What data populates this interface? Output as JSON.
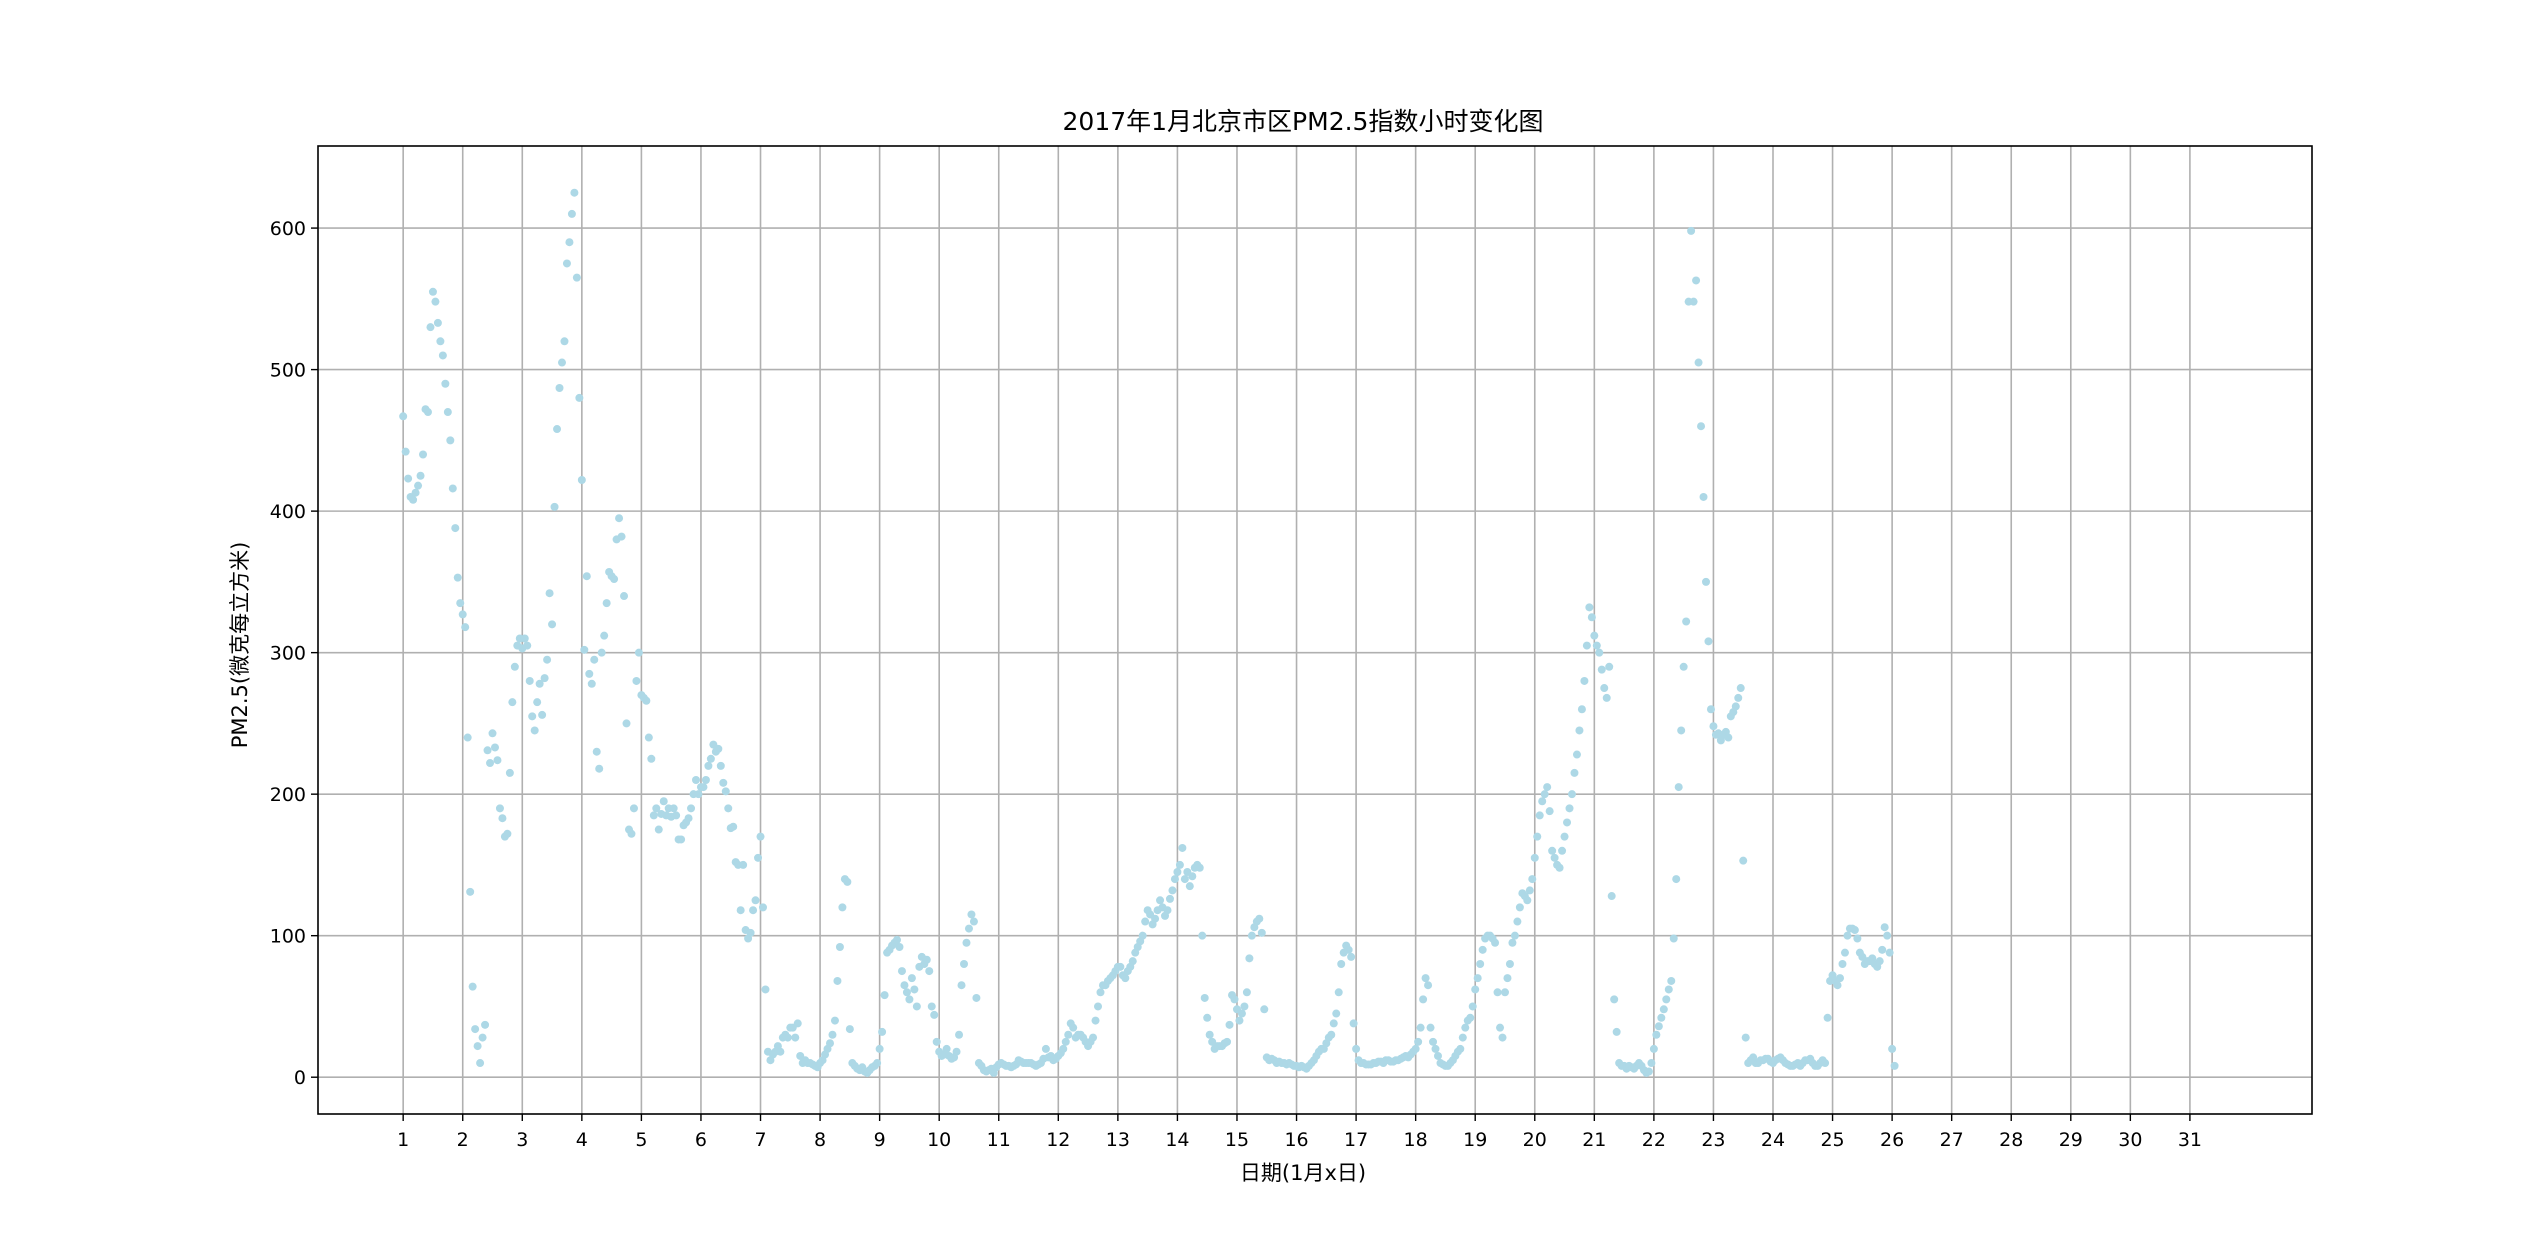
{
  "colors": {
    "point": "#add8e6",
    "grid": "#b0b0b0",
    "axis": "#000000",
    "background": "#ffffff"
  },
  "chart_data": {
    "type": "scatter",
    "title": "2017年1月北京市区PM2.5指数小时变化图",
    "xlabel": "日期(1月x日)",
    "ylabel": "PM2.5(微克每立方米)",
    "x_unit": "day of January (1 = Jan 1 00:00)",
    "xlim": [
      -0.43,
      33.05
    ],
    "ylim": [
      -26,
      658
    ],
    "xticks": [
      1,
      2,
      3,
      4,
      5,
      6,
      7,
      8,
      9,
      10,
      11,
      12,
      13,
      14,
      15,
      16,
      17,
      18,
      19,
      20,
      21,
      22,
      23,
      24,
      25,
      26,
      27,
      28,
      29,
      30,
      31
    ],
    "yticks": [
      0,
      100,
      200,
      300,
      400,
      500,
      600
    ],
    "grid": true,
    "series": [
      {
        "x_start": 1,
        "x_step_hours": 1,
        "values": [
          467,
          442,
          423,
          410,
          408,
          413,
          418,
          425,
          440,
          472,
          470,
          530,
          555,
          548,
          533,
          520,
          510,
          490,
          470,
          450,
          416,
          388,
          353,
          335,
          327,
          318,
          240,
          131,
          64,
          34,
          22,
          10,
          28,
          37,
          231,
          222,
          243,
          233,
          224,
          190,
          183,
          170,
          172,
          215,
          265,
          290,
          305,
          310,
          303,
          310,
          305,
          280,
          255,
          245,
          265,
          278,
          256,
          282,
          295,
          342,
          320,
          403,
          458,
          487,
          505,
          520,
          575,
          590,
          610,
          625,
          565,
          480,
          422,
          302,
          354,
          285,
          278,
          295,
          230,
          218,
          300,
          312,
          335,
          357,
          354,
          352,
          380,
          395,
          382,
          340,
          250,
          175,
          172,
          190,
          280,
          300,
          270,
          268,
          266,
          240,
          225,
          185,
          190,
          175,
          186,
          195,
          185,
          190,
          184,
          190,
          185,
          168,
          168,
          178,
          180,
          183,
          190,
          200,
          210,
          200,
          205,
          205,
          210,
          220,
          225,
          235,
          230,
          232,
          220,
          208,
          202,
          190,
          176,
          177,
          152,
          150,
          118,
          150,
          104,
          98,
          102,
          118,
          125,
          155,
          170,
          120,
          62,
          18,
          12,
          16,
          18,
          22,
          18,
          28,
          30,
          28,
          35,
          35,
          28,
          38,
          15,
          10,
          12,
          10,
          10,
          9,
          8,
          7,
          10,
          12,
          16,
          20,
          24,
          30,
          40,
          68,
          92,
          120,
          140,
          138,
          34,
          10,
          8,
          6,
          5,
          7,
          4,
          3,
          5,
          7,
          8,
          10,
          20,
          32,
          58,
          88,
          90,
          93,
          95,
          97,
          92,
          75,
          65,
          60,
          55,
          70,
          62,
          50,
          78,
          85,
          80,
          83,
          75,
          50,
          44,
          25,
          18,
          15,
          16,
          20,
          15,
          13,
          14,
          18,
          30,
          65,
          80,
          95,
          105,
          115,
          110,
          56,
          10,
          8,
          5,
          4,
          5,
          6,
          3,
          7,
          9,
          10,
          9,
          8,
          8,
          7,
          8,
          9,
          12,
          11,
          10,
          10,
          10,
          10,
          9,
          8,
          9,
          10,
          13,
          20,
          14,
          15,
          12,
          13,
          15,
          17,
          20,
          25,
          30,
          38,
          35,
          28,
          30,
          30,
          28,
          25,
          22,
          25,
          28,
          40,
          50,
          60,
          65,
          65,
          68,
          70,
          72,
          75,
          78,
          78,
          72,
          70,
          75,
          78,
          82,
          88,
          92,
          96,
          100,
          110,
          118,
          115,
          108,
          112,
          118,
          125,
          120,
          114,
          118,
          126,
          132,
          140,
          145,
          150,
          162,
          140,
          145,
          135,
          142,
          148,
          150,
          148,
          100,
          56,
          42,
          30,
          25,
          20,
          22,
          22,
          22,
          24,
          25,
          37,
          58,
          55,
          48,
          40,
          45,
          50,
          60,
          84,
          100,
          106,
          110,
          112,
          102,
          48,
          14,
          12,
          13,
          12,
          10,
          11,
          10,
          10,
          9,
          10,
          9,
          8,
          8,
          7,
          8,
          7,
          6,
          8,
          10,
          12,
          15,
          18,
          20,
          20,
          24,
          28,
          30,
          38,
          45,
          60,
          80,
          88,
          93,
          90,
          85,
          38,
          20,
          12,
          10,
          10,
          9,
          9,
          9,
          10,
          10,
          11,
          11,
          10,
          12,
          12,
          11,
          11,
          12,
          12,
          13,
          14,
          15,
          14,
          16,
          18,
          20,
          25,
          35,
          55,
          70,
          65,
          35,
          25,
          20,
          15,
          10,
          9,
          8,
          8,
          10,
          12,
          15,
          18,
          20,
          28,
          35,
          40,
          42,
          50,
          62,
          70,
          80,
          90,
          98,
          100,
          100,
          98,
          95,
          60,
          35,
          28,
          60,
          70,
          80,
          95,
          100,
          110,
          120,
          130,
          128,
          125,
          132,
          140,
          155,
          170,
          185,
          195,
          200,
          205,
          188,
          160,
          155,
          150,
          148,
          160,
          170,
          180,
          190,
          200,
          215,
          228,
          245,
          260,
          280,
          305,
          332,
          325,
          312,
          305,
          300,
          288,
          275,
          268,
          290,
          128,
          55,
          32,
          10,
          8,
          8,
          6,
          8,
          7,
          6,
          8,
          10,
          8,
          5,
          3,
          4,
          10,
          20,
          30,
          36,
          42,
          48,
          55,
          62,
          68,
          98,
          140,
          205,
          245,
          290,
          322,
          548,
          598,
          548,
          563,
          505,
          460,
          410,
          350,
          308,
          260,
          248,
          242,
          243,
          238,
          242,
          244,
          240,
          255,
          258,
          262,
          268,
          275,
          153,
          28,
          10,
          12,
          14,
          10,
          10,
          12,
          12,
          13,
          13,
          11,
          10,
          12,
          13,
          14,
          12,
          10,
          9,
          8,
          8,
          9,
          10,
          8,
          10,
          12,
          12,
          13,
          10,
          8,
          8,
          10,
          12,
          10,
          42,
          68,
          72,
          68,
          65,
          70,
          80,
          88,
          100,
          105,
          105,
          104,
          98,
          88,
          85,
          80,
          82,
          82,
          84,
          80,
          78,
          82,
          90,
          106,
          100,
          88,
          20,
          8
        ]
      }
    ]
  }
}
